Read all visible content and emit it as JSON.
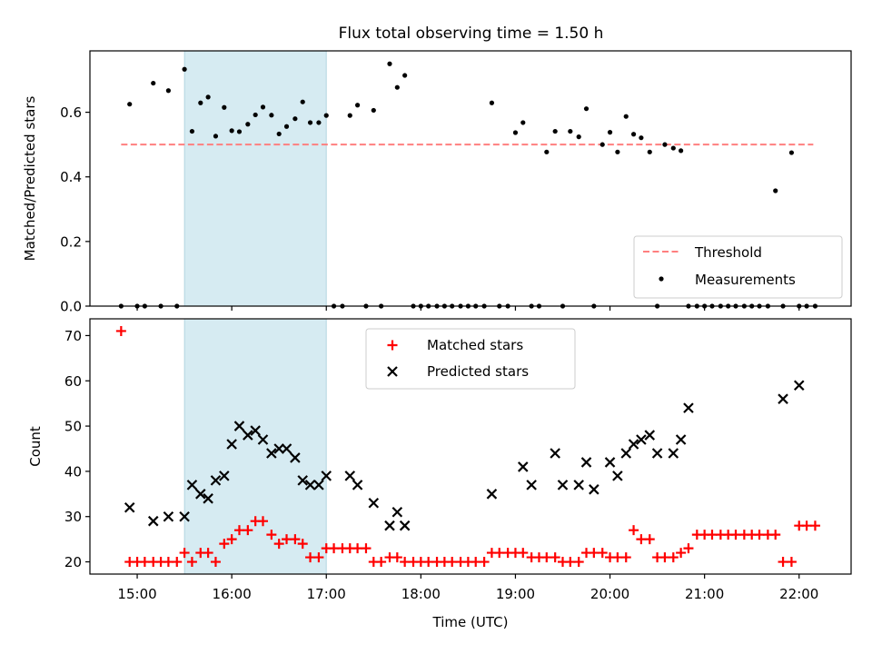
{
  "title": "Flux total observing time = 1.50 h",
  "chart_data": [
    {
      "type": "scatter",
      "ylabel": "Matched/Predicted stars",
      "xlim": [
        14.5,
        22.55
      ],
      "ylim": [
        0,
        0.79
      ],
      "yticks": [
        0.0,
        0.2,
        0.4,
        0.6
      ],
      "ytick_labels": [
        "0.0",
        "0.2",
        "0.4",
        "0.6"
      ],
      "grid": false,
      "legend_position": "lower-right",
      "shaded_region": {
        "x": [
          15.5,
          17.0
        ],
        "color": "#add8e6"
      },
      "threshold": {
        "name": "Threshold",
        "value": 0.5,
        "x_range": [
          14.83,
          22.15
        ],
        "color": "#ff7f7f"
      },
      "series": [
        {
          "name": "Measurements",
          "marker": "dot",
          "color": "#000000",
          "x": [
            14.83,
            14.92,
            15.0,
            15.08,
            15.17,
            15.25,
            15.33,
            15.42,
            15.5,
            15.58,
            15.67,
            15.75,
            15.83,
            15.92,
            16.0,
            16.08,
            16.17,
            16.25,
            16.33,
            16.42,
            16.5,
            16.58,
            16.67,
            16.75,
            16.83,
            16.92,
            17.0,
            17.08,
            17.17,
            17.25,
            17.33,
            17.42,
            17.5,
            17.58,
            17.67,
            17.75,
            17.83,
            17.92,
            18.0,
            18.08,
            18.17,
            18.25,
            18.33,
            18.42,
            18.5,
            18.58,
            18.67,
            18.75,
            18.83,
            18.92,
            19.0,
            19.08,
            19.17,
            19.25,
            19.33,
            19.42,
            19.5,
            19.58,
            19.67,
            19.75,
            19.83,
            19.92,
            20.0,
            20.08,
            20.17,
            20.25,
            20.33,
            20.42,
            20.5,
            20.58,
            20.67,
            20.75,
            20.83,
            20.92,
            21.0,
            21.08,
            21.17,
            21.25,
            21.33,
            21.42,
            21.5,
            21.58,
            21.67,
            21.75,
            21.83,
            21.92,
            22.0,
            22.08,
            22.17
          ],
          "y": [
            0.0,
            0.625,
            0.0,
            0.0,
            0.69,
            0.0,
            0.667,
            0.0,
            0.733,
            0.541,
            0.629,
            0.647,
            0.526,
            0.615,
            0.543,
            0.54,
            0.563,
            0.592,
            0.616,
            0.591,
            0.533,
            0.556,
            0.58,
            0.632,
            0.568,
            0.568,
            0.59,
            0.0,
            0.0,
            0.59,
            0.622,
            0.0,
            0.606,
            0.0,
            0.75,
            0.677,
            0.714,
            0.0,
            0.0,
            0.0,
            0.0,
            0.0,
            0.0,
            0.0,
            0.0,
            0.0,
            0.0,
            0.629,
            0.0,
            0.0,
            0.537,
            0.568,
            0.0,
            0.0,
            0.477,
            0.541,
            0.0,
            0.541,
            0.524,
            0.611,
            0.0,
            0.5,
            0.538,
            0.477,
            0.587,
            0.532,
            0.521,
            0.477,
            0.0,
            0.5,
            0.489,
            0.481,
            0.0,
            0.0,
            0.0,
            0.0,
            0.0,
            0.0,
            0.0,
            0.0,
            0.0,
            0.0,
            0.0,
            0.357,
            0.0,
            0.475,
            0.0,
            0.0,
            0.0
          ]
        }
      ]
    },
    {
      "type": "scatter",
      "xlabel": "Time (UTC)",
      "ylabel": "Count",
      "xlim": [
        14.5,
        22.55
      ],
      "ylim": [
        17.3,
        73.7
      ],
      "xticks": [
        15,
        16,
        17,
        18,
        19,
        20,
        21,
        22
      ],
      "xtick_labels": [
        "15:00",
        "16:00",
        "17:00",
        "18:00",
        "19:00",
        "20:00",
        "21:00",
        "22:00"
      ],
      "yticks": [
        20,
        30,
        40,
        50,
        60,
        70
      ],
      "ytick_labels": [
        "20",
        "30",
        "40",
        "50",
        "60",
        "70"
      ],
      "grid": false,
      "legend_position": "top-center",
      "shaded_region": {
        "x": [
          15.5,
          17.0
        ],
        "color": "#add8e6"
      },
      "series": [
        {
          "name": "Matched stars",
          "marker": "plus",
          "color": "#ff0000",
          "x": [
            14.83,
            14.92,
            15.0,
            15.08,
            15.17,
            15.25,
            15.33,
            15.42,
            15.5,
            15.58,
            15.67,
            15.75,
            15.83,
            15.92,
            16.0,
            16.08,
            16.17,
            16.25,
            16.33,
            16.42,
            16.5,
            16.58,
            16.67,
            16.75,
            16.83,
            16.92,
            17.0,
            17.08,
            17.17,
            17.25,
            17.33,
            17.42,
            17.5,
            17.58,
            17.67,
            17.75,
            17.83,
            17.92,
            18.0,
            18.08,
            18.17,
            18.25,
            18.33,
            18.42,
            18.5,
            18.58,
            18.67,
            18.75,
            18.83,
            18.92,
            19.0,
            19.08,
            19.17,
            19.25,
            19.33,
            19.42,
            19.5,
            19.58,
            19.67,
            19.75,
            19.83,
            19.92,
            20.0,
            20.08,
            20.17,
            20.25,
            20.33,
            20.42,
            20.5,
            20.58,
            20.67,
            20.75,
            20.83,
            20.92,
            21.0,
            21.08,
            21.17,
            21.25,
            21.33,
            21.42,
            21.5,
            21.58,
            21.67,
            21.75,
            21.83,
            21.92,
            22.0,
            22.08,
            22.17
          ],
          "y": [
            71,
            20,
            20,
            20,
            20,
            20,
            20,
            20,
            22,
            20,
            22,
            22,
            20,
            24,
            25,
            27,
            27,
            29,
            29,
            26,
            24,
            25,
            25,
            24,
            21,
            21,
            23,
            23,
            23,
            23,
            23,
            23,
            20,
            20,
            21,
            21,
            20,
            20,
            20,
            20,
            20,
            20,
            20,
            20,
            20,
            20,
            20,
            22,
            22,
            22,
            22,
            22,
            21,
            21,
            21,
            21,
            20,
            20,
            20,
            22,
            22,
            22,
            21,
            21,
            21,
            27,
            25,
            25,
            21,
            21,
            21,
            22,
            23,
            26,
            26,
            26,
            26,
            26,
            26,
            26,
            26,
            26,
            26,
            26,
            20,
            20,
            28,
            28,
            28
          ]
        },
        {
          "name": "Predicted stars",
          "marker": "x",
          "color": "#000000",
          "x": [
            14.92,
            15.17,
            15.33,
            15.5,
            15.58,
            15.67,
            15.75,
            15.83,
            15.92,
            16.0,
            16.08,
            16.17,
            16.25,
            16.33,
            16.42,
            16.5,
            16.58,
            16.67,
            16.75,
            16.83,
            16.92,
            17.0,
            17.25,
            17.33,
            17.5,
            17.67,
            17.75,
            17.83,
            18.75,
            19.08,
            19.17,
            19.42,
            19.5,
            19.67,
            19.75,
            19.83,
            20.0,
            20.08,
            20.17,
            20.25,
            20.33,
            20.42,
            20.5,
            20.67,
            20.75,
            20.83,
            21.83,
            22.0
          ],
          "y": [
            32,
            29,
            30,
            30,
            37,
            35,
            34,
            38,
            39,
            46,
            50,
            48,
            49,
            47,
            44,
            45,
            45,
            43,
            38,
            37,
            37,
            39,
            39,
            37,
            33,
            28,
            31,
            28,
            35,
            41,
            37,
            44,
            37,
            37,
            42,
            36,
            42,
            39,
            44,
            46,
            47,
            48,
            44,
            44,
            47,
            54,
            56,
            59
          ]
        }
      ]
    }
  ]
}
